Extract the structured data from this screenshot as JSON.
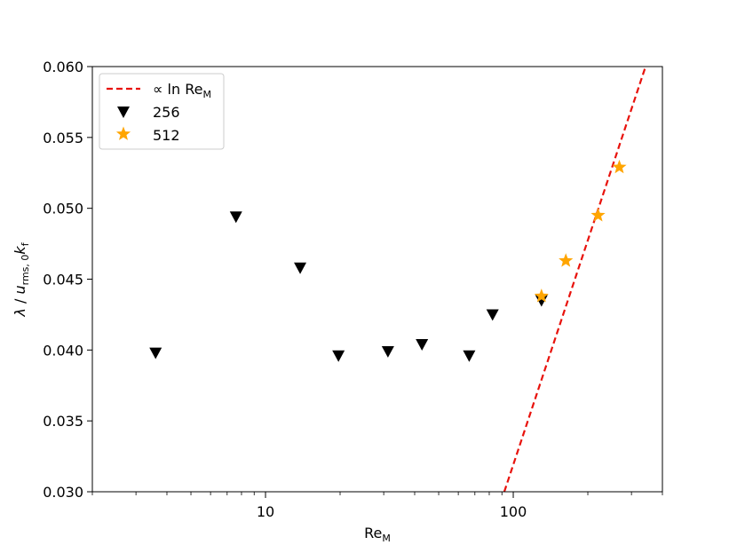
{
  "chart_data": {
    "type": "scatter",
    "xscale": "log",
    "xlim": [
      2,
      400
    ],
    "ylim": [
      0.03,
      0.06
    ],
    "xlabel": {
      "main": "Re",
      "sub": "M"
    },
    "ylabel": {
      "lambda": "λ",
      "slash": " / ",
      "u": "u",
      "u_sub": "rms, 0",
      "k": "k",
      "k_sub": "f"
    },
    "x_ticks": [
      {
        "value": 10,
        "label": "10"
      },
      {
        "value": 100,
        "label": "100"
      }
    ],
    "y_ticks": [
      {
        "value": 0.03,
        "label": "0.030"
      },
      {
        "value": 0.035,
        "label": "0.035"
      },
      {
        "value": 0.04,
        "label": "0.040"
      },
      {
        "value": 0.045,
        "label": "0.045"
      },
      {
        "value": 0.05,
        "label": "0.050"
      },
      {
        "value": 0.055,
        "label": "0.055"
      },
      {
        "value": 0.06,
        "label": "0.060"
      }
    ],
    "legend": {
      "placement": "upper-left",
      "entries": [
        {
          "marker": "dashed-line",
          "color": "#e8120c",
          "label_prefix": "∝ ln Re",
          "label_sub": "M"
        },
        {
          "marker": "triangle-down",
          "color": "#000000",
          "label": "256"
        },
        {
          "marker": "star",
          "color": "#ffa500",
          "label": "512"
        }
      ]
    },
    "series": [
      {
        "name": "256",
        "marker": "triangle-down",
        "color": "#000000",
        "points": [
          {
            "x": 3.6,
            "y": 0.0398
          },
          {
            "x": 7.6,
            "y": 0.0494
          },
          {
            "x": 13.8,
            "y": 0.0458
          },
          {
            "x": 19.7,
            "y": 0.0396
          },
          {
            "x": 31.2,
            "y": 0.0399
          },
          {
            "x": 42.8,
            "y": 0.0404
          },
          {
            "x": 66.4,
            "y": 0.0396
          },
          {
            "x": 82.5,
            "y": 0.0425
          },
          {
            "x": 130,
            "y": 0.0435
          }
        ]
      },
      {
        "name": "512",
        "marker": "star",
        "color": "#ffa500",
        "points": [
          {
            "x": 130,
            "y": 0.0438
          },
          {
            "x": 163,
            "y": 0.0463
          },
          {
            "x": 220,
            "y": 0.0495
          },
          {
            "x": 268,
            "y": 0.0529
          }
        ]
      }
    ],
    "fit_line": {
      "style": "dashed",
      "color": "#e8120c",
      "points": [
        {
          "x": 92,
          "y": 0.03
        },
        {
          "x": 342,
          "y": 0.06
        }
      ]
    }
  }
}
